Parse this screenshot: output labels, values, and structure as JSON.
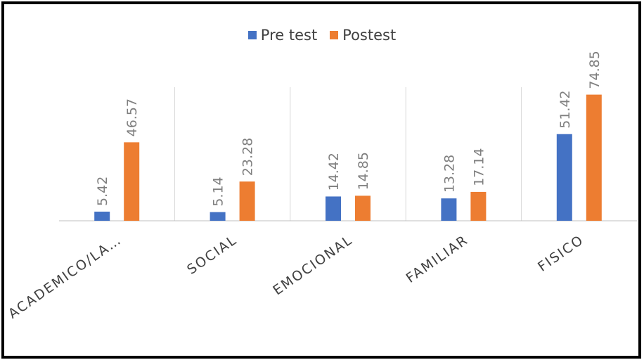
{
  "chart_data": {
    "type": "bar",
    "title": "",
    "xlabel": "",
    "ylabel": "",
    "categories": [
      "ACADEMICO/LA…",
      "SOCIAL",
      "EMOCIONAL",
      "FAMILIAR",
      "FISICO"
    ],
    "series": [
      {
        "name": "Pre test",
        "values": [
          5.42,
          5.14,
          14.42,
          13.28,
          51.42
        ],
        "labels": [
          "5.42",
          "5.14",
          "14.42",
          "13.28",
          "51.42"
        ],
        "color": "#4472c4"
      },
      {
        "name": "Postest",
        "values": [
          46.57,
          23.28,
          14.85,
          17.14,
          74.85
        ],
        "labels": [
          "46.57",
          "23.28",
          "14.85",
          "17.14",
          "74.85"
        ],
        "color": "#ed7d31"
      }
    ],
    "ylim": [
      0,
      80
    ],
    "grid": "vertical category separators",
    "legend_position": "top"
  }
}
